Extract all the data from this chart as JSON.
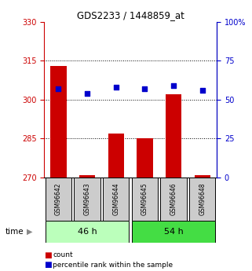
{
  "title": "GDS2233 / 1448859_at",
  "samples": [
    "GSM96642",
    "GSM96643",
    "GSM96644",
    "GSM96645",
    "GSM96646",
    "GSM96648"
  ],
  "count_values": [
    313,
    271,
    287,
    285,
    302,
    271
  ],
  "percentile_values": [
    57,
    54,
    58,
    57,
    59,
    56
  ],
  "bar_color": "#cc0000",
  "dot_color": "#0000cc",
  "ylim_left": [
    270,
    330
  ],
  "ylim_right": [
    0,
    100
  ],
  "yticks_left": [
    270,
    285,
    300,
    315,
    330
  ],
  "yticks_right": [
    0,
    25,
    50,
    75,
    100
  ],
  "ytick_labels_right": [
    "0",
    "25",
    "50",
    "75",
    "100%"
  ],
  "grid_lines_at": [
    285,
    300,
    315
  ],
  "groups": [
    {
      "label": "46 h",
      "start": 0,
      "end": 2,
      "color": "#bbffbb"
    },
    {
      "label": "54 h",
      "start": 3,
      "end": 5,
      "color": "#44dd44"
    }
  ],
  "legend_count": "count",
  "legend_percentile": "percentile rank within the sample",
  "background_color": "#ffffff",
  "left_axis_color": "#cc0000",
  "right_axis_color": "#0000cc",
  "sample_box_color": "#cccccc"
}
